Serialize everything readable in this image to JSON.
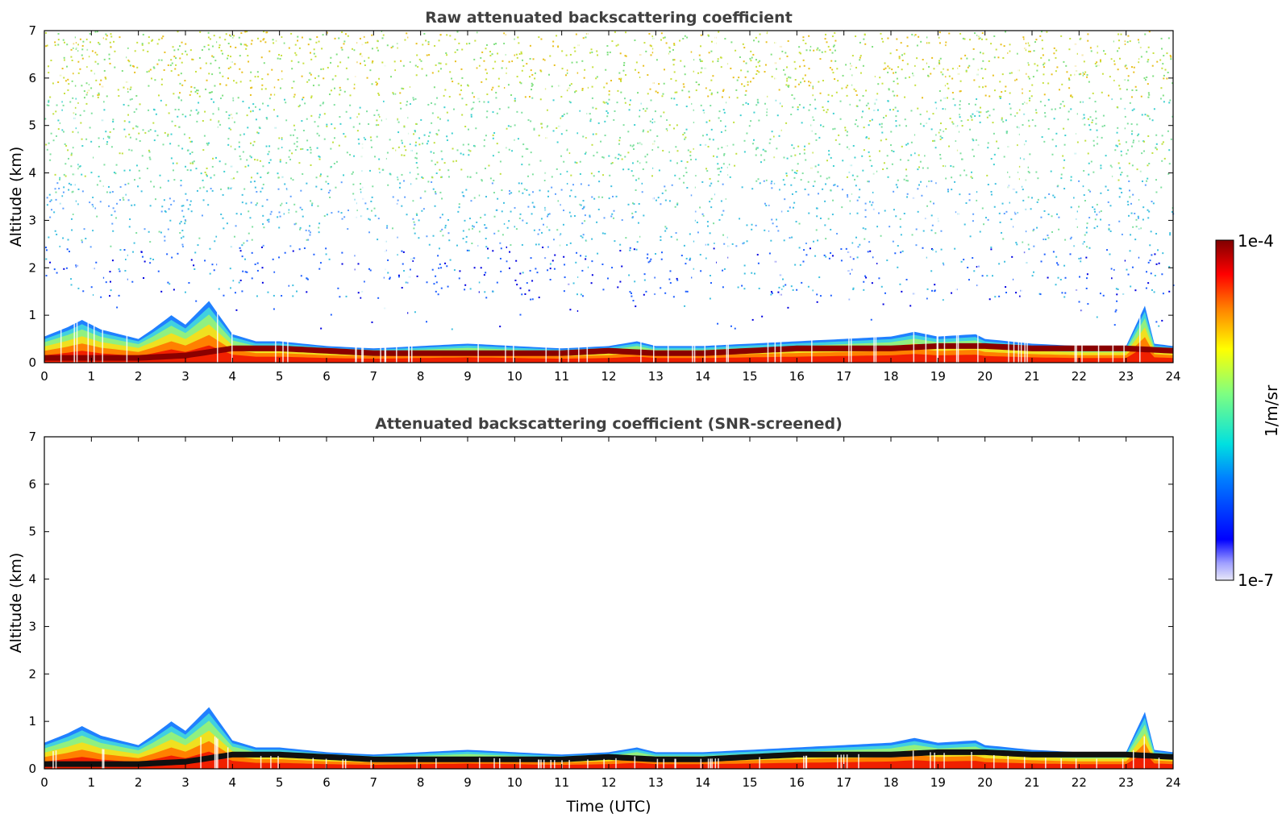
{
  "chart_data": [
    {
      "type": "heatmap",
      "title": "Raw attenuated backscattering coefficient",
      "xlabel": "",
      "ylabel": "Altitude (km)",
      "xlim": [
        0,
        24
      ],
      "ylim": [
        0,
        7
      ],
      "x_ticks": [
        "0",
        "1",
        "2",
        "3",
        "4",
        "5",
        "6",
        "7",
        "8",
        "9",
        "10",
        "11",
        "12",
        "13",
        "14",
        "15",
        "16",
        "17",
        "18",
        "19",
        "20",
        "21",
        "22",
        "23",
        "24"
      ],
      "y_ticks": [
        "0",
        "1",
        "2",
        "3",
        "4",
        "5",
        "6",
        "7"
      ],
      "layer_top_km": [
        [
          0,
          0.55
        ],
        [
          0.5,
          0.75
        ],
        [
          0.8,
          0.9
        ],
        [
          1.2,
          0.7
        ],
        [
          1.6,
          0.6
        ],
        [
          2.0,
          0.5
        ],
        [
          2.3,
          0.7
        ],
        [
          2.7,
          1.0
        ],
        [
          3.0,
          0.8
        ],
        [
          3.5,
          1.3
        ],
        [
          4.0,
          0.6
        ],
        [
          4.5,
          0.45
        ],
        [
          5.0,
          0.45
        ],
        [
          6.0,
          0.35
        ],
        [
          7.0,
          0.3
        ],
        [
          8.0,
          0.35
        ],
        [
          9.0,
          0.4
        ],
        [
          10.0,
          0.35
        ],
        [
          11.0,
          0.3
        ],
        [
          12.0,
          0.35
        ],
        [
          12.6,
          0.45
        ],
        [
          13.0,
          0.35
        ],
        [
          14.0,
          0.35
        ],
        [
          15.0,
          0.4
        ],
        [
          16.0,
          0.45
        ],
        [
          17.0,
          0.5
        ],
        [
          18.0,
          0.55
        ],
        [
          18.5,
          0.65
        ],
        [
          19.0,
          0.55
        ],
        [
          19.8,
          0.6
        ],
        [
          20.0,
          0.5
        ],
        [
          21.0,
          0.4
        ],
        [
          22.0,
          0.35
        ],
        [
          23.0,
          0.35
        ],
        [
          23.4,
          1.2
        ],
        [
          23.6,
          0.4
        ],
        [
          24.0,
          0.35
        ]
      ],
      "layer_core_km": [
        [
          0,
          0.1
        ],
        [
          1,
          0.1
        ],
        [
          2,
          0.1
        ],
        [
          3,
          0.15
        ],
        [
          4,
          0.3
        ],
        [
          5,
          0.3
        ],
        [
          6,
          0.25
        ],
        [
          7,
          0.2
        ],
        [
          8,
          0.2
        ],
        [
          9,
          0.2
        ],
        [
          10,
          0.2
        ],
        [
          11,
          0.2
        ],
        [
          12,
          0.25
        ],
        [
          13,
          0.2
        ],
        [
          14,
          0.2
        ],
        [
          15,
          0.25
        ],
        [
          16,
          0.3
        ],
        [
          17,
          0.3
        ],
        [
          18,
          0.3
        ],
        [
          19,
          0.35
        ],
        [
          20,
          0.35
        ],
        [
          21,
          0.3
        ],
        [
          22,
          0.3
        ],
        [
          23,
          0.3
        ],
        [
          24,
          0.25
        ]
      ],
      "noise_above_km": true
    },
    {
      "type": "heatmap",
      "title": "Attenuated backscattering coefficient (SNR-screened)",
      "xlabel": "Time (UTC)",
      "ylabel": "Altitude (km)",
      "xlim": [
        0,
        24
      ],
      "ylim": [
        0,
        7
      ],
      "x_ticks": [
        "0",
        "1",
        "2",
        "3",
        "4",
        "5",
        "6",
        "7",
        "8",
        "9",
        "10",
        "11",
        "12",
        "13",
        "14",
        "15",
        "16",
        "17",
        "18",
        "19",
        "20",
        "21",
        "22",
        "23",
        "24"
      ],
      "y_ticks": [
        "0",
        "1",
        "2",
        "3",
        "4",
        "5",
        "6",
        "7"
      ],
      "layer_top_km": [
        [
          0,
          0.55
        ],
        [
          0.5,
          0.75
        ],
        [
          0.8,
          0.9
        ],
        [
          1.2,
          0.7
        ],
        [
          1.6,
          0.6
        ],
        [
          2.0,
          0.5
        ],
        [
          2.3,
          0.7
        ],
        [
          2.7,
          1.0
        ],
        [
          3.0,
          0.8
        ],
        [
          3.5,
          1.3
        ],
        [
          4.0,
          0.6
        ],
        [
          4.5,
          0.45
        ],
        [
          5.0,
          0.45
        ],
        [
          6.0,
          0.35
        ],
        [
          7.0,
          0.3
        ],
        [
          8.0,
          0.35
        ],
        [
          9.0,
          0.4
        ],
        [
          10.0,
          0.35
        ],
        [
          11.0,
          0.3
        ],
        [
          12.0,
          0.35
        ],
        [
          12.6,
          0.45
        ],
        [
          13.0,
          0.35
        ],
        [
          14.0,
          0.35
        ],
        [
          15.0,
          0.4
        ],
        [
          16.0,
          0.45
        ],
        [
          17.0,
          0.5
        ],
        [
          18.0,
          0.55
        ],
        [
          18.5,
          0.65
        ],
        [
          19.0,
          0.55
        ],
        [
          19.8,
          0.6
        ],
        [
          20.0,
          0.5
        ],
        [
          21.0,
          0.4
        ],
        [
          22.0,
          0.35
        ],
        [
          23.0,
          0.35
        ],
        [
          23.4,
          1.2
        ],
        [
          23.6,
          0.4
        ],
        [
          24.0,
          0.35
        ]
      ],
      "layer_core_km": [
        [
          0,
          0.1
        ],
        [
          1,
          0.1
        ],
        [
          2,
          0.1
        ],
        [
          3,
          0.15
        ],
        [
          4,
          0.3
        ],
        [
          5,
          0.3
        ],
        [
          6,
          0.25
        ],
        [
          7,
          0.2
        ],
        [
          8,
          0.2
        ],
        [
          9,
          0.2
        ],
        [
          10,
          0.2
        ],
        [
          11,
          0.2
        ],
        [
          12,
          0.25
        ],
        [
          13,
          0.2
        ],
        [
          14,
          0.2
        ],
        [
          15,
          0.25
        ],
        [
          16,
          0.3
        ],
        [
          17,
          0.3
        ],
        [
          18,
          0.3
        ],
        [
          19,
          0.35
        ],
        [
          20,
          0.35
        ],
        [
          21,
          0.3
        ],
        [
          22,
          0.3
        ],
        [
          23,
          0.3
        ],
        [
          24,
          0.25
        ]
      ],
      "noise_above_km": false
    }
  ],
  "colorbar": {
    "label": "1/m/sr",
    "max_label": "1e-4",
    "min_label": "1e-7",
    "colormap": "jet",
    "colors": [
      "#e8e8f8",
      "#a0a0ff",
      "#0000ff",
      "#0080ff",
      "#00e0e0",
      "#80ff80",
      "#ffff00",
      "#ff8000",
      "#ff0000",
      "#800000"
    ]
  }
}
